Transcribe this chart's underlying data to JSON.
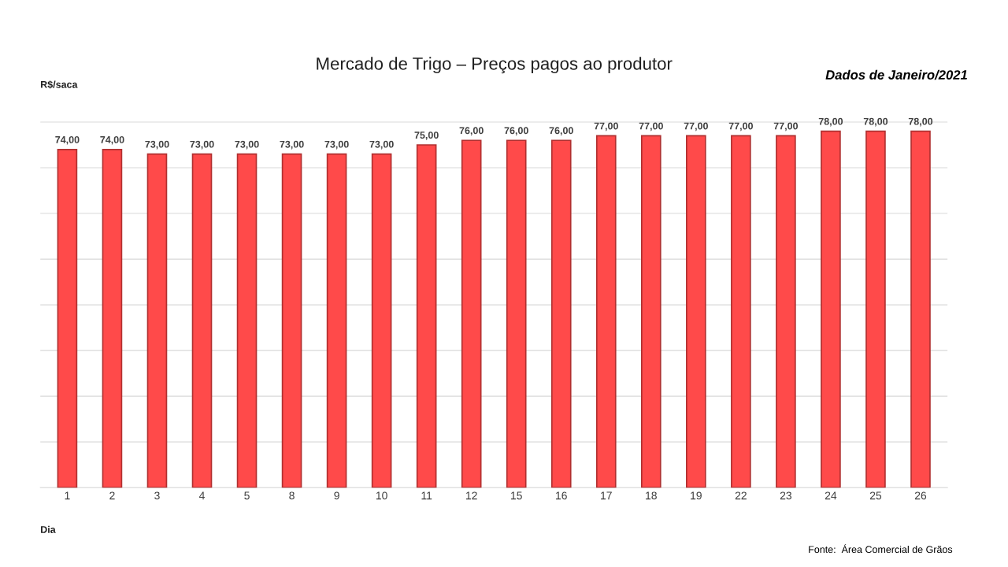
{
  "chart_data": {
    "type": "bar",
    "title": "Mercado de Trigo – Preços pagos ao produtor",
    "xlabel": "Dia",
    "ylabel": "R$/saca",
    "annotations": [
      "Dados de Janeiro/2021",
      "Fonte:  Área Comercial de Grãos"
    ],
    "categories": [
      "1",
      "2",
      "3",
      "4",
      "5",
      "8",
      "9",
      "10",
      "11",
      "12",
      "15",
      "16",
      "17",
      "18",
      "19",
      "22",
      "23",
      "24",
      "25",
      "26"
    ],
    "values": [
      74,
      74,
      73,
      73,
      73,
      73,
      73,
      73,
      75,
      76,
      76,
      76,
      77,
      77,
      77,
      77,
      77,
      78,
      78,
      78
    ],
    "value_labels": [
      "74,00",
      "74,00",
      "73,00",
      "73,00",
      "73,00",
      "73,00",
      "73,00",
      "73,00",
      "75,00",
      "76,00",
      "76,00",
      "76,00",
      "77,00",
      "77,00",
      "77,00",
      "77,00",
      "77,00",
      "78,00",
      "78,00",
      "78,00"
    ],
    "color": "#ff4a4a",
    "grid": "y",
    "tick_labels": "x",
    "legend": false
  }
}
